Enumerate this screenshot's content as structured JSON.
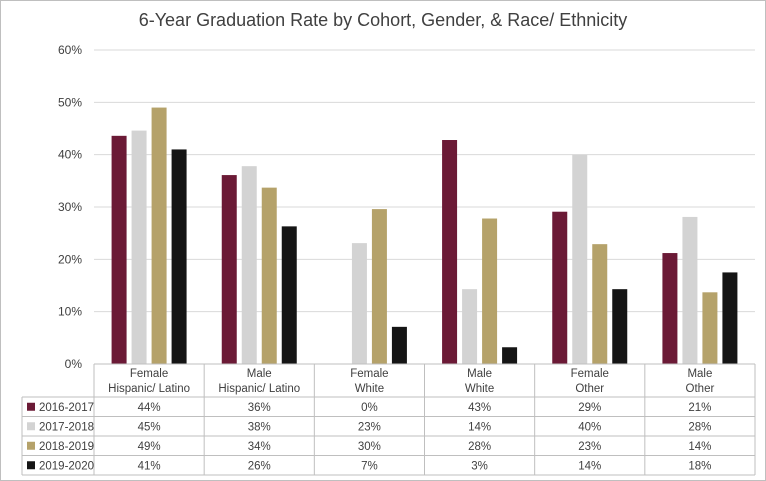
{
  "chart_data": {
    "type": "bar",
    "title": "6-Year Graduation Rate by Cohort, Gender, & Race/ Ethnicity",
    "categories": [
      [
        "Female",
        "Hispanic/ Latino"
      ],
      [
        "Male",
        "Hispanic/ Latino"
      ],
      [
        "Female",
        "White"
      ],
      [
        "Male",
        "White"
      ],
      [
        "Female",
        "Other"
      ],
      [
        "Male",
        "Other"
      ]
    ],
    "series": [
      {
        "name": "2016-2017",
        "color": "#6b1a36",
        "values": [
          43.6,
          36.1,
          0,
          42.8,
          29.1,
          21.2
        ],
        "labels": [
          "44%",
          "36%",
          "0%",
          "43%",
          "29%",
          "21%"
        ]
      },
      {
        "name": "2017-2018",
        "color": "#d3d3d3",
        "values": [
          44.6,
          37.8,
          23.1,
          14.3,
          40.0,
          28.1
        ],
        "labels": [
          "45%",
          "38%",
          "23%",
          "14%",
          "40%",
          "28%"
        ]
      },
      {
        "name": "2018-2019",
        "color": "#b5a26a",
        "values": [
          49.0,
          33.7,
          29.6,
          27.8,
          22.9,
          13.7
        ],
        "labels": [
          "49%",
          "34%",
          "30%",
          "28%",
          "23%",
          "14%"
        ]
      },
      {
        "name": "2019-2020",
        "color": "#151515",
        "values": [
          41.0,
          26.3,
          7.1,
          3.2,
          14.3,
          17.5
        ],
        "labels": [
          "41%",
          "26%",
          "7%",
          "3%",
          "14%",
          "18%"
        ]
      }
    ],
    "yticks": [
      "0%",
      "10%",
      "20%",
      "30%",
      "40%",
      "50%",
      "60%"
    ],
    "ylim": [
      0,
      60
    ],
    "grid": true,
    "legend": "data-table"
  }
}
